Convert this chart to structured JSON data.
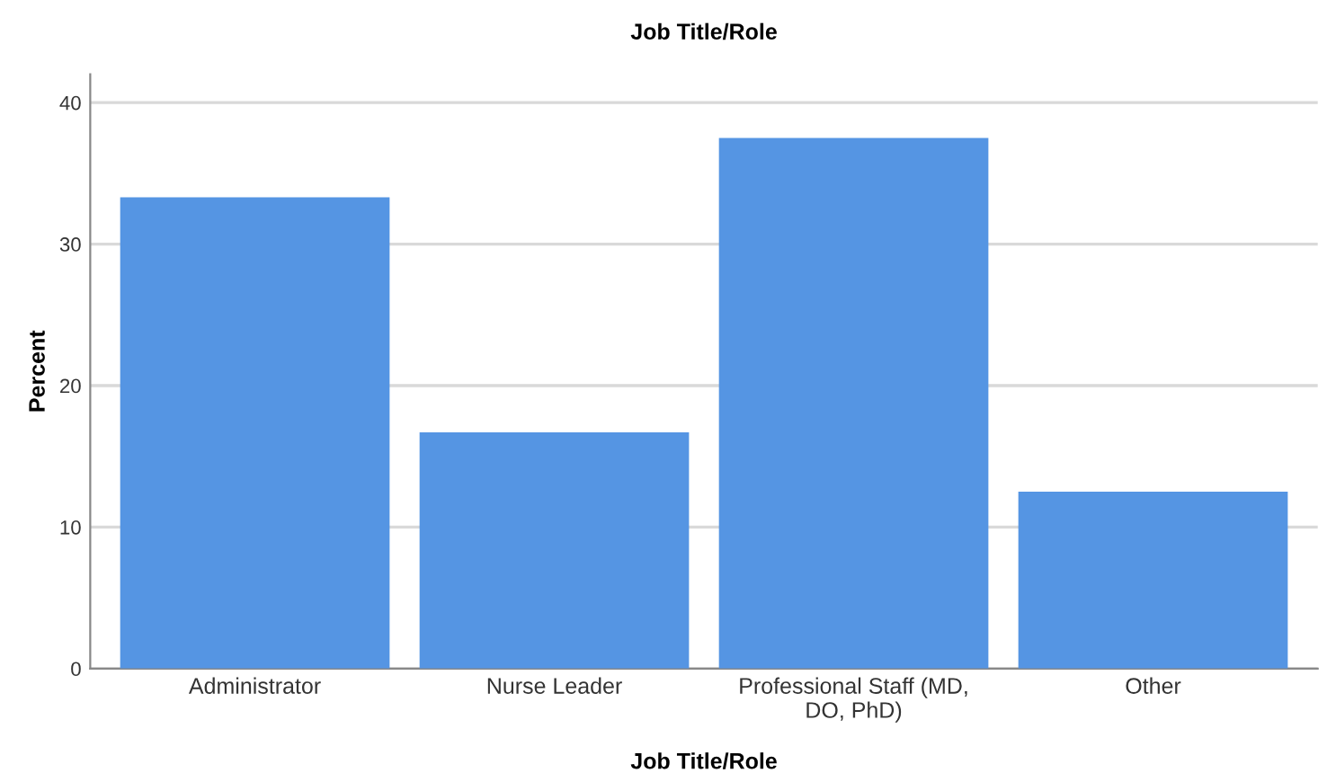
{
  "chart_data": {
    "type": "bar",
    "title": "Job Title/Role",
    "xlabel": "Job Title/Role",
    "ylabel": "Percent",
    "categories": [
      "Administrator",
      "Nurse Leader",
      "Professional Staff (MD, DO, PhD)",
      "Other"
    ],
    "values": [
      33.3,
      16.7,
      37.5,
      12.5
    ],
    "color": "#5595e3",
    "ylim": [
      0,
      42
    ],
    "yticks": [
      0,
      10,
      20,
      30,
      40
    ],
    "grid": "y"
  }
}
